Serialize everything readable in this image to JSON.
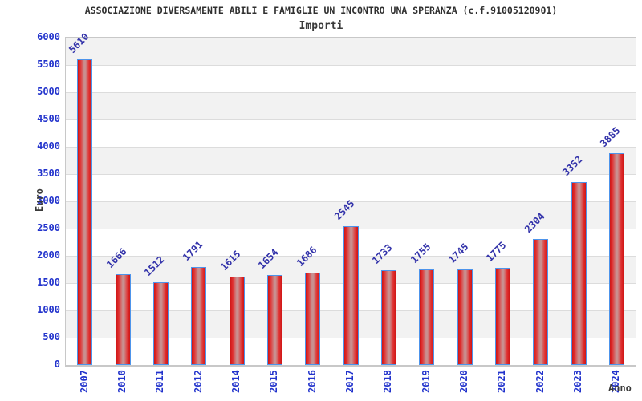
{
  "chart_data": {
    "type": "bar",
    "title": "ASSOCIAZIONE DIVERSAMENTE ABILI E FAMIGLIE UN INCONTRO UNA SPERANZA (c.f.91005120901)",
    "subtitle": "Importi",
    "xlabel": "Anno",
    "ylabel": "Euro",
    "categories": [
      "2007",
      "2010",
      "2011",
      "2012",
      "2014",
      "2015",
      "2016",
      "2017",
      "2018",
      "2019",
      "2020",
      "2021",
      "2022",
      "2023",
      "2024"
    ],
    "values": [
      5610,
      1666,
      1512,
      1791,
      1615,
      1654,
      1686,
      2545,
      1733,
      1755,
      1745,
      1775,
      2304,
      3352,
      3885
    ],
    "ylim": [
      0,
      6000
    ],
    "ytick_step": 500,
    "grid": "horizontal-bands",
    "legend": "none",
    "bar_value_label_rotation_deg": -45,
    "x_tick_label_rotation_deg": -90,
    "colors": {
      "bar_edge": "#cf1616",
      "bar_body": "#e03131",
      "bar_center_highlight": "#c99090",
      "bar_border": "#4d94eb",
      "axis_tick_label": "#2233cc",
      "bar_value_label": "#3333aa",
      "title_text": "#2f2f2f",
      "axis_title_text": "#3a3a3a",
      "band_gray": "#f2f2f2",
      "band_white": "#ffffff",
      "gridline": "#dcdcdc",
      "plot_border": "#c8c8c8"
    }
  }
}
